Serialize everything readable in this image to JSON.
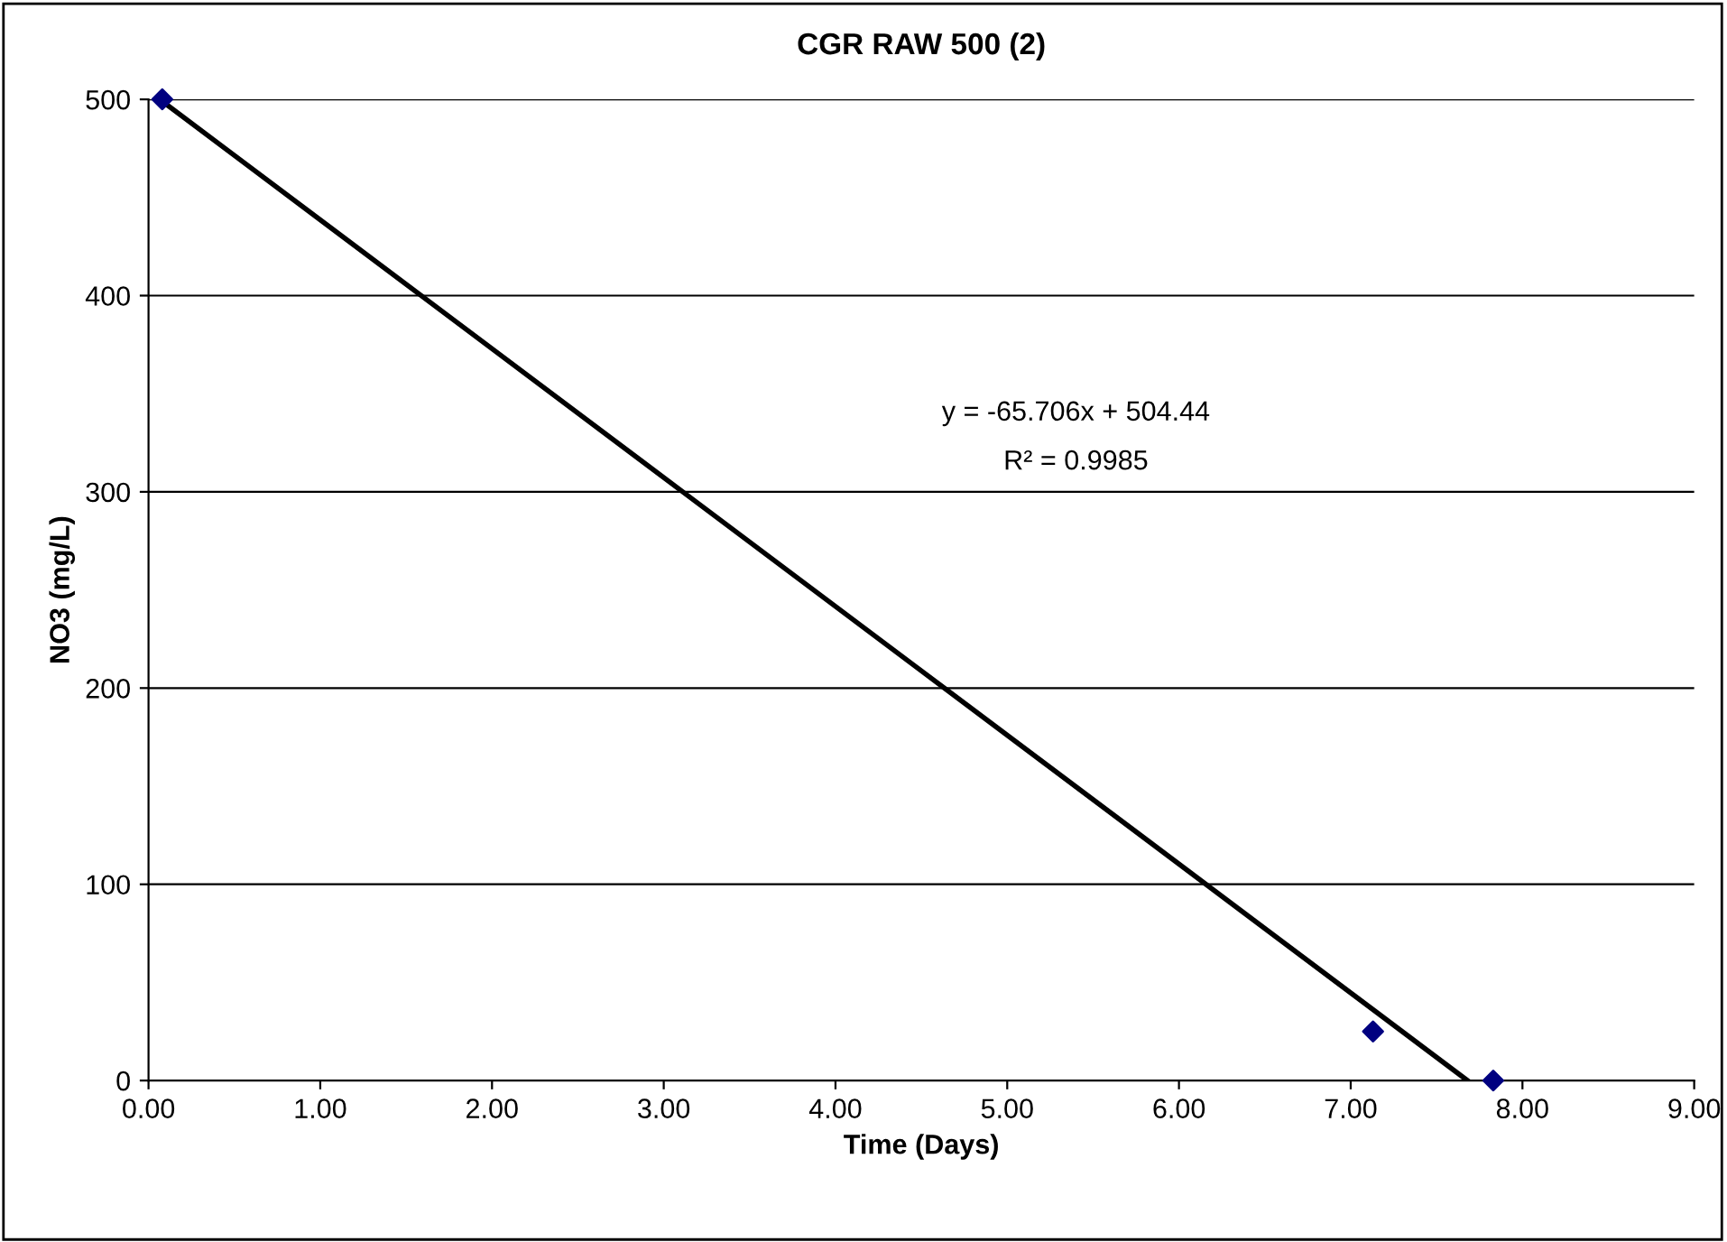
{
  "chart_data": {
    "type": "scatter",
    "title": "CGR RAW 500 (2)",
    "xlabel": "Time (Days)",
    "ylabel": "NO3 (mg/L)",
    "series": [
      {
        "type": "scatter",
        "color": "#000080",
        "marker": "diamond",
        "x": [
          0.08,
          7.13,
          7.83
        ],
        "values": [
          500,
          25,
          0
        ]
      },
      {
        "type": "line",
        "color": "#000000",
        "marker": "none",
        "line_style": "solid",
        "x": [
          0.08,
          7.68
        ],
        "values": [
          499,
          0
        ]
      }
    ],
    "xlim": [
      0,
      9
    ],
    "ylim": [
      0,
      500
    ],
    "xticks": [
      {
        "value": 0,
        "label": "0.00"
      },
      {
        "value": 1,
        "label": "1.00"
      },
      {
        "value": 2,
        "label": "2.00"
      },
      {
        "value": 3,
        "label": "3.00"
      },
      {
        "value": 4,
        "label": "4.00"
      },
      {
        "value": 5,
        "label": "5.00"
      },
      {
        "value": 6,
        "label": "6.00"
      },
      {
        "value": 7,
        "label": "7.00"
      },
      {
        "value": 8,
        "label": "8.00"
      },
      {
        "value": 9,
        "label": "9.00"
      }
    ],
    "yticks": [
      0,
      100,
      200,
      300,
      400,
      500
    ],
    "grid": "y",
    "legend": false,
    "annotations": [
      "y = -65.706x + 504.44",
      "R² = 0.9985"
    ]
  }
}
